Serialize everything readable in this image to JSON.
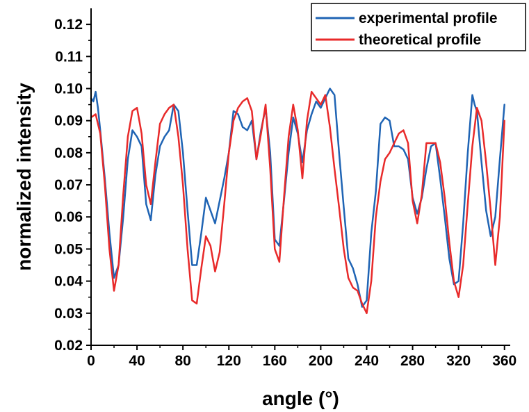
{
  "chart_data": {
    "type": "line",
    "xlabel": "angle (°)",
    "ylabel": "normalized intensity",
    "xlim": [
      0,
      365
    ],
    "ylim": [
      0.02,
      0.125
    ],
    "xticks": [
      0,
      40,
      80,
      120,
      160,
      200,
      240,
      280,
      320,
      360
    ],
    "yticks": [
      0.02,
      0.03,
      0.04,
      0.05,
      0.06,
      0.07,
      0.08,
      0.09,
      0.1,
      0.11,
      0.12
    ],
    "xtick_labels": [
      "0",
      "40",
      "80",
      "120",
      "160",
      "200",
      "240",
      "280",
      "320",
      "360"
    ],
    "ytick_labels": [
      "0.02",
      "0.03",
      "0.04",
      "0.05",
      "0.06",
      "0.07",
      "0.08",
      "0.09",
      "0.10",
      "0.11",
      "0.12"
    ],
    "grid": false,
    "legend_position": "top-right",
    "series": [
      {
        "name": "experimental profile",
        "color": "#1f64b4",
        "x": [
          0,
          2,
          4,
          6,
          8,
          12,
          16,
          20,
          24,
          28,
          32,
          36,
          40,
          44,
          48,
          52,
          56,
          60,
          64,
          68,
          72,
          74,
          76,
          80,
          84,
          88,
          92,
          96,
          100,
          104,
          108,
          112,
          116,
          120,
          124,
          128,
          132,
          136,
          140,
          144,
          148,
          152,
          156,
          160,
          164,
          168,
          172,
          176,
          180,
          184,
          188,
          192,
          196,
          200,
          204,
          208,
          212,
          216,
          220,
          224,
          228,
          232,
          236,
          240,
          244,
          248,
          252,
          256,
          260,
          264,
          268,
          272,
          276,
          280,
          284,
          288,
          292,
          296,
          300,
          304,
          308,
          312,
          316,
          320,
          324,
          328,
          332,
          334,
          336,
          340,
          344,
          348,
          352,
          356,
          360
        ],
        "y": [
          0.097,
          0.096,
          0.099,
          0.094,
          0.087,
          0.072,
          0.055,
          0.041,
          0.045,
          0.06,
          0.078,
          0.087,
          0.085,
          0.082,
          0.064,
          0.059,
          0.073,
          0.082,
          0.085,
          0.087,
          0.095,
          0.094,
          0.093,
          0.08,
          0.062,
          0.045,
          0.045,
          0.055,
          0.066,
          0.062,
          0.058,
          0.065,
          0.072,
          0.08,
          0.093,
          0.092,
          0.088,
          0.087,
          0.09,
          0.078,
          0.087,
          0.094,
          0.08,
          0.053,
          0.051,
          0.065,
          0.08,
          0.091,
          0.086,
          0.077,
          0.087,
          0.092,
          0.096,
          0.094,
          0.097,
          0.1,
          0.098,
          0.08,
          0.063,
          0.047,
          0.044,
          0.039,
          0.032,
          0.034,
          0.055,
          0.068,
          0.089,
          0.091,
          0.09,
          0.082,
          0.082,
          0.081,
          0.078,
          0.066,
          0.061,
          0.066,
          0.075,
          0.082,
          0.083,
          0.072,
          0.06,
          0.047,
          0.039,
          0.04,
          0.058,
          0.08,
          0.098,
          0.095,
          0.093,
          0.077,
          0.062,
          0.054,
          0.06,
          0.078,
          0.095
        ]
      },
      {
        "name": "theoretical profile",
        "color": "#e82a2a",
        "x": [
          0,
          4,
          8,
          12,
          16,
          20,
          24,
          28,
          32,
          36,
          40,
          44,
          48,
          52,
          56,
          60,
          64,
          68,
          72,
          76,
          80,
          84,
          88,
          92,
          96,
          100,
          104,
          108,
          112,
          116,
          120,
          124,
          128,
          132,
          136,
          140,
          144,
          148,
          152,
          156,
          160,
          164,
          168,
          172,
          176,
          180,
          184,
          188,
          192,
          196,
          200,
          204,
          208,
          212,
          216,
          220,
          224,
          228,
          232,
          236,
          240,
          244,
          248,
          252,
          256,
          260,
          264,
          268,
          272,
          276,
          280,
          284,
          288,
          292,
          296,
          300,
          304,
          308,
          312,
          316,
          320,
          324,
          328,
          332,
          336,
          340,
          344,
          348,
          352,
          356,
          360
        ],
        "y": [
          0.091,
          0.092,
          0.086,
          0.07,
          0.05,
          0.037,
          0.045,
          0.067,
          0.085,
          0.093,
          0.094,
          0.086,
          0.07,
          0.064,
          0.077,
          0.089,
          0.092,
          0.094,
          0.095,
          0.085,
          0.07,
          0.05,
          0.034,
          0.033,
          0.044,
          0.054,
          0.051,
          0.043,
          0.049,
          0.064,
          0.08,
          0.09,
          0.094,
          0.096,
          0.097,
          0.093,
          0.078,
          0.086,
          0.095,
          0.075,
          0.05,
          0.046,
          0.066,
          0.085,
          0.095,
          0.087,
          0.072,
          0.09,
          0.099,
          0.097,
          0.095,
          0.098,
          0.088,
          0.075,
          0.063,
          0.05,
          0.041,
          0.038,
          0.037,
          0.033,
          0.03,
          0.04,
          0.06,
          0.071,
          0.078,
          0.08,
          0.083,
          0.086,
          0.087,
          0.083,
          0.065,
          0.058,
          0.067,
          0.083,
          0.083,
          0.083,
          0.077,
          0.066,
          0.052,
          0.04,
          0.035,
          0.045,
          0.064,
          0.082,
          0.094,
          0.09,
          0.077,
          0.062,
          0.045,
          0.06,
          0.09
        ]
      }
    ]
  }
}
